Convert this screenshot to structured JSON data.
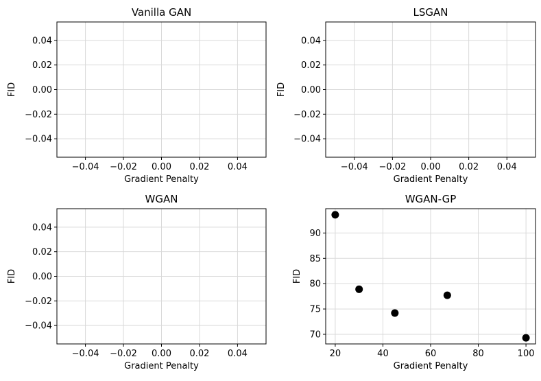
{
  "chart_data": [
    {
      "type": "scatter",
      "title": "Vanilla GAN",
      "xlabel": "Gradient Penalty",
      "ylabel": "FID",
      "x": [],
      "y": [],
      "xlim": [
        -0.055,
        0.055
      ],
      "ylim": [
        -0.055,
        0.055
      ],
      "xticks": [
        -0.04,
        -0.02,
        0.0,
        0.02,
        0.04
      ],
      "yticks": [
        -0.04,
        -0.02,
        0.0,
        0.02,
        0.04
      ],
      "xtick_labels": [
        "−0.04",
        "−0.02",
        "0.00",
        "0.02",
        "0.04"
      ],
      "ytick_labels": [
        "−0.04",
        "−0.02",
        "0.00",
        "0.02",
        "0.04"
      ],
      "grid": true
    },
    {
      "type": "scatter",
      "title": "LSGAN",
      "xlabel": "Gradient Penalty",
      "ylabel": "FID",
      "x": [],
      "y": [],
      "xlim": [
        -0.055,
        0.055
      ],
      "ylim": [
        -0.055,
        0.055
      ],
      "xticks": [
        -0.04,
        -0.02,
        0.0,
        0.02,
        0.04
      ],
      "yticks": [
        -0.04,
        -0.02,
        0.0,
        0.02,
        0.04
      ],
      "xtick_labels": [
        "−0.04",
        "−0.02",
        "0.00",
        "0.02",
        "0.04"
      ],
      "ytick_labels": [
        "−0.04",
        "−0.02",
        "0.00",
        "0.02",
        "0.04"
      ],
      "grid": true
    },
    {
      "type": "scatter",
      "title": "WGAN",
      "xlabel": "Gradient Penalty",
      "ylabel": "FID",
      "x": [],
      "y": [],
      "xlim": [
        -0.055,
        0.055
      ],
      "ylim": [
        -0.055,
        0.055
      ],
      "xticks": [
        -0.04,
        -0.02,
        0.0,
        0.02,
        0.04
      ],
      "yticks": [
        -0.04,
        -0.02,
        0.0,
        0.02,
        0.04
      ],
      "xtick_labels": [
        "−0.04",
        "−0.02",
        "0.00",
        "0.02",
        "0.04"
      ],
      "ytick_labels": [
        "−0.04",
        "−0.02",
        "0.00",
        "0.02",
        "0.04"
      ],
      "grid": true
    },
    {
      "type": "scatter",
      "title": "WGAN-GP",
      "xlabel": "Gradient Penalty",
      "ylabel": "FID",
      "x": [
        20,
        30,
        45,
        67,
        100
      ],
      "y": [
        93.6,
        78.9,
        74.2,
        77.7,
        69.3
      ],
      "xlim": [
        16,
        104
      ],
      "ylim": [
        68.1,
        94.8
      ],
      "xticks": [
        20,
        40,
        60,
        80,
        100
      ],
      "yticks": [
        70,
        75,
        80,
        85,
        90
      ],
      "xtick_labels": [
        "20",
        "40",
        "60",
        "80",
        "100"
      ],
      "ytick_labels": [
        "70",
        "75",
        "80",
        "85",
        "90"
      ],
      "grid": true,
      "marker_color": "#000000"
    }
  ],
  "colors": {
    "grid": "#d9d9d9",
    "axes": "#000000",
    "marker": "#000000"
  }
}
